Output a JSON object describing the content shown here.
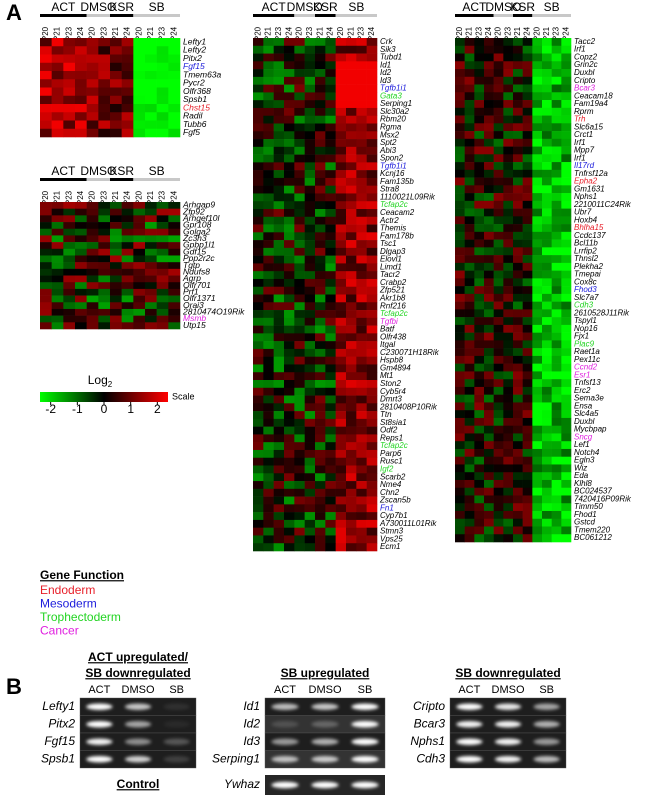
{
  "panel_a": {
    "label": "A",
    "groups": [
      {
        "name": "ACT",
        "span": 4
      },
      {
        "name": "DMSO",
        "span": 2
      },
      {
        "name": "KSR",
        "span": 2
      },
      {
        "name": "SB",
        "span": 4
      }
    ],
    "columns": [
      "P20",
      "P21",
      "P23",
      "P24",
      "P20",
      "P23",
      "P21",
      "P24",
      "P20",
      "P21",
      "P23",
      "P24"
    ],
    "heatmaps": [
      {
        "genes": [
          "Lefty1",
          "Lefty2",
          "Pitx2",
          "Fgf15",
          "Tmem63a",
          "Pycr2",
          "Olfr368",
          "Spsb1",
          "Chst15",
          "Radil",
          "Tubb6",
          "Fgf5"
        ],
        "functions": [
          null,
          null,
          null,
          "Mesoderm",
          null,
          null,
          null,
          null,
          "Endoderm",
          null,
          null,
          null
        ]
      },
      {
        "genes": [
          "Arhgap9",
          "Zfp92",
          "Arhgef10l",
          "Gpr108",
          "Golga2",
          "Zc3h3",
          "Gpbp1l1",
          "Gdf15",
          "Ppp2r2c",
          "Tgtp",
          "Ndufs8",
          "Agrp",
          "Olfr701",
          "Prf1",
          "Olfr1371",
          "Orai3",
          "2810474O19Rik",
          "Msmb",
          "Utp15"
        ],
        "functions": [
          null,
          null,
          null,
          null,
          null,
          null,
          null,
          null,
          null,
          null,
          null,
          null,
          null,
          null,
          null,
          null,
          null,
          "Cancer",
          null
        ]
      },
      {
        "genes": [
          "Crk",
          "Sik3",
          "Tubd1",
          "Id1",
          "Id2",
          "Id3",
          "Tgfb1i1",
          "Gata3",
          "Serping1",
          "Slc30a2",
          "Rbm20",
          "Rgma",
          "Msx2",
          "Spt2",
          "Abi3",
          "Spon2",
          "Tgfb1i1",
          "Kcnj16",
          "Fam135b",
          "Stra8",
          "1110021L09Rik",
          "Tcfap2c",
          "Ceacam2",
          "Actr2",
          "Themis",
          "Fam178b",
          "Tsc1",
          "Dlgap3",
          "Elovl1",
          "Limd1",
          "Tacr2",
          "Crabp2",
          "Zfp521",
          "Akr1b8",
          "Rnf216",
          "Tcfap2c",
          "Tgfbi",
          "Batf",
          "Olfr438",
          "Itgal",
          "C230071H18Rik",
          "Hspb8",
          "Gm4894",
          "Mt1",
          "Ston2",
          "Cyb5r4",
          "Dmrt3",
          "2810408P10Rik",
          "Ttn",
          "St8sia1",
          "Odf2",
          "Reps1",
          "Tcfap2c",
          "Parp6",
          "Rusc1",
          "Igf2",
          "Scarb2",
          "Nme4",
          "Chn2",
          "Zscan5b",
          "Fn1",
          "Cyp7b1",
          "A730011L01Rik",
          "Stmn3",
          "Vps25",
          "Ecm1"
        ],
        "functions": [
          null,
          null,
          null,
          null,
          null,
          null,
          "Mesoderm",
          "Trophectoderm",
          null,
          null,
          null,
          null,
          null,
          null,
          null,
          null,
          "Mesoderm",
          null,
          null,
          null,
          null,
          "Trophectoderm",
          null,
          null,
          null,
          null,
          null,
          null,
          null,
          null,
          null,
          null,
          null,
          null,
          null,
          "Trophectoderm",
          "Cancer",
          null,
          null,
          null,
          null,
          null,
          null,
          null,
          null,
          null,
          null,
          null,
          null,
          null,
          null,
          null,
          "Trophectoderm",
          null,
          null,
          "Trophectoderm",
          null,
          null,
          null,
          null,
          "Mesoderm",
          null,
          null,
          null,
          null,
          null
        ]
      },
      {
        "genes": [
          "Tacc2",
          "Irf1",
          "Copz2",
          "Grin2c",
          "Duxbl",
          "Cripto",
          "Bcar3",
          "Ceacam18",
          "Fam19a4",
          "Rprm",
          "Trh",
          "Slc6a15",
          "Crct1",
          "Irf1",
          "Mpp7",
          "Irf1",
          "Il17rd",
          "Tnfrsf12a",
          "Epha2",
          "Gm1631",
          "Nphs1",
          "2210011C24Rik",
          "Ubr7",
          "Hoxb4",
          "Bhlha15",
          "Ccdc137",
          "Bcl11b",
          "Lrrfip2",
          "Thnsl2",
          "Plekha2",
          "Tmepai",
          "Cox8c",
          "Fhod3",
          "Slc7a7",
          "Cdh3",
          "2610528J11Rik",
          "Tspyl1",
          "Nop16",
          "Fjx1",
          "Plac9",
          "Raet1a",
          "Pex11c",
          "Ccnd2",
          "Esr1",
          "Tnfsf13",
          "Erc2",
          "Sema3e",
          "Ensa",
          "Slc4a5",
          "Duxbl",
          "Mycbpap",
          "Sncg",
          "Lef1",
          "Notch4",
          "Egln3",
          "Wiz",
          "Eda",
          "Klhl8",
          "BC024537",
          "7420416P09Rik",
          "Timm50",
          "Fhod1",
          "Gstcd",
          "Tmem220",
          "BC061212"
        ],
        "functions": [
          null,
          null,
          null,
          null,
          null,
          null,
          "Cancer",
          null,
          null,
          null,
          "Endoderm",
          null,
          null,
          null,
          null,
          null,
          "Mesoderm",
          null,
          "Endoderm",
          null,
          null,
          null,
          null,
          null,
          "Endoderm",
          null,
          null,
          null,
          null,
          null,
          null,
          null,
          "Mesoderm",
          null,
          "Trophectoderm",
          null,
          null,
          null,
          null,
          "Trophectoderm",
          null,
          null,
          "Cancer",
          "Cancer",
          null,
          null,
          null,
          null,
          null,
          null,
          null,
          "Cancer",
          null,
          null,
          null,
          null,
          null,
          null,
          null,
          null,
          null,
          null,
          null,
          null,
          null
        ]
      }
    ],
    "scale": {
      "label": "Log",
      "label_sub": "2",
      "ticks": [
        -2,
        -1,
        0,
        1,
        2
      ],
      "lim": [
        -2.4,
        2.4
      ],
      "end_label": "Scale"
    },
    "legend": {
      "title": "Gene Function",
      "items": [
        {
          "name": "Endoderm",
          "color": "#e8202a"
        },
        {
          "name": "Mesoderm",
          "color": "#1a1adb"
        },
        {
          "name": "Trophectoderm",
          "color": "#22d422"
        },
        {
          "name": "Cancer",
          "color": "#e020e0"
        }
      ]
    }
  },
  "panel_b": {
    "label": "B",
    "groups": [
      {
        "title": [
          "ACT upregulated/",
          "SB downregulated"
        ],
        "lanes": [
          "ACT",
          "DMSO",
          "SB"
        ],
        "genes": [
          "Lefty1",
          "Pitx2",
          "Fgf15",
          "Spsb1"
        ]
      },
      {
        "title": [
          "SB upregulated"
        ],
        "lanes": [
          "ACT",
          "DMSO",
          "SB"
        ],
        "genes": [
          "Id1",
          "Id2",
          "Id3",
          "Serping1"
        ]
      },
      {
        "title": [
          "SB downregulated"
        ],
        "lanes": [
          "ACT",
          "DMSO",
          "SB"
        ],
        "genes": [
          "Cripto",
          "Bcar3",
          "Nphs1",
          "Cdh3"
        ]
      }
    ],
    "control": {
      "title": "Control",
      "gene": "Ywhaz"
    }
  }
}
